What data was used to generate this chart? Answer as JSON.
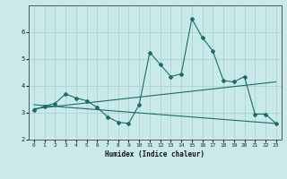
{
  "xlabel": "Humidex (Indice chaleur)",
  "background_color": "#caeaea",
  "grid_color": "#aad4d4",
  "line_color": "#1a6b6b",
  "x_values": [
    0,
    1,
    2,
    3,
    4,
    5,
    6,
    7,
    8,
    9,
    10,
    11,
    12,
    13,
    14,
    15,
    16,
    17,
    18,
    19,
    20,
    21,
    22,
    23
  ],
  "series1": [
    3.1,
    3.25,
    3.35,
    3.7,
    3.55,
    3.45,
    3.2,
    2.85,
    2.65,
    2.6,
    3.3,
    5.25,
    4.8,
    4.35,
    4.45,
    6.5,
    5.8,
    5.3,
    4.2,
    4.15,
    4.35,
    2.95,
    2.95,
    2.6
  ],
  "trend1_x": [
    0,
    23
  ],
  "trend1_y": [
    3.15,
    4.15
  ],
  "trend2_x": [
    0,
    23
  ],
  "trend2_y": [
    3.3,
    2.6
  ],
  "ylim": [
    2.0,
    7.0
  ],
  "xlim": [
    -0.5,
    23.5
  ],
  "yticks": [
    2,
    3,
    4,
    5,
    6
  ],
  "xticks": [
    0,
    1,
    2,
    3,
    4,
    5,
    6,
    7,
    8,
    9,
    10,
    11,
    12,
    13,
    14,
    15,
    16,
    17,
    18,
    19,
    20,
    21,
    22,
    23
  ]
}
